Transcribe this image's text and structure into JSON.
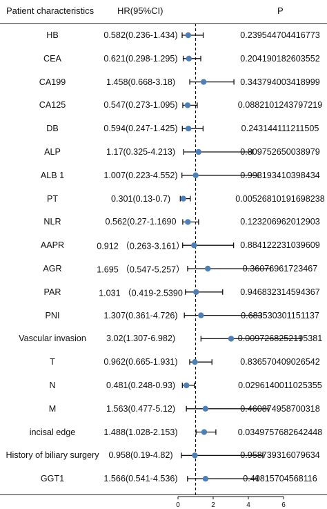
{
  "header": {
    "characteristics": "Patient characteristics",
    "hr": "HR(95%CI)",
    "p": "P"
  },
  "chart_data": {
    "type": "forest",
    "title": "",
    "xlabel": "",
    "ylabel": "",
    "reference_line": 1,
    "xlim": [
      0,
      6
    ],
    "x_ticks": [
      "0",
      "2",
      "4",
      "6"
    ],
    "marker_color": "#4f7fb5",
    "rows": [
      {
        "name": "HB",
        "hr_text": "0.582(0.236-1.434)",
        "p": "0.239544704416773",
        "hr": 0.582,
        "lo": 0.236,
        "hi": 1.434
      },
      {
        "name": "CEA",
        "hr_text": "0.621(0.298-1.295)",
        "p": "0.204190182603552",
        "hr": 0.621,
        "lo": 0.298,
        "hi": 1.295
      },
      {
        "name": "CA199",
        "hr_text": "1.458(0.668-3.18)",
        "p": "0.343794003418999",
        "hr": 1.458,
        "lo": 0.668,
        "hi": 3.18
      },
      {
        "name": "CA125",
        "hr_text": "0.547(0.273-1.095)",
        "p": "0.0882101243797219",
        "hr": 0.547,
        "lo": 0.273,
        "hi": 1.095
      },
      {
        "name": "DB",
        "hr_text": "0.594(0.247-1.425)",
        "p": "0.243144111211505",
        "hr": 0.594,
        "lo": 0.247,
        "hi": 1.425
      },
      {
        "name": "ALP",
        "hr_text": "1.17(0.325-4.213)",
        "p": "0.809752650038979",
        "hr": 1.17,
        "lo": 0.325,
        "hi": 4.213
      },
      {
        "name": "ALB 1",
        "hr_text": "1.007(0.223-4.552)",
        "p": "0.993193410398434",
        "hr": 1.007,
        "lo": 0.223,
        "hi": 4.552
      },
      {
        "name": "PT",
        "hr_text": "0.301(0.13-0.7)",
        "p": "0.00526810191698238",
        "hr": 0.301,
        "lo": 0.13,
        "hi": 0.7
      },
      {
        "name": "NLR",
        "hr_text": "0.562(0.27-1.1690",
        "p": "0.123206962012903",
        "hr": 0.562,
        "lo": 0.27,
        "hi": 1.169
      },
      {
        "name": "AAPR",
        "hr_text": "0.912 （0.263-3.161）",
        "p": "0.884122231039609",
        "hr": 0.912,
        "lo": 0.263,
        "hi": 3.161
      },
      {
        "name": "AGR",
        "hr_text": "1.695 （0.547-5.257）",
        "p": "0.36076961723467",
        "hr": 1.695,
        "lo": 0.547,
        "hi": 5.257
      },
      {
        "name": "PAR",
        "hr_text": "1.031 （0.419-2.5390",
        "p": "0.946832314594367",
        "hr": 1.031,
        "lo": 0.419,
        "hi": 2.539
      },
      {
        "name": "PNI",
        "hr_text": "1.307(0.361-4.726)",
        "p": "0.683530301151137",
        "hr": 1.307,
        "lo": 0.361,
        "hi": 4.726
      },
      {
        "name": "Vascular invasion",
        "hr_text": "3.02(1.307-6.982)",
        "p": "0.0097268252195381",
        "hr": 3.02,
        "lo": 1.307,
        "hi": 6.982
      },
      {
        "name": "T",
        "hr_text": "0.962(0.665-1.931)",
        "p": "0.836570409026542",
        "hr": 0.962,
        "lo": 0.665,
        "hi": 1.931
      },
      {
        "name": "N",
        "hr_text": "0.481(0.248-0.93)",
        "p": "0.0296140011025355",
        "hr": 0.481,
        "lo": 0.248,
        "hi": 0.93
      },
      {
        "name": "M",
        "hr_text": "1.563(0.477-5.12)",
        "p": "0.460874958700318",
        "hr": 1.563,
        "lo": 0.477,
        "hi": 5.12
      },
      {
        "name": "incisal edge",
        "hr_text": "1.488(1.028-2.153)",
        "p": "0.0349757682642448",
        "hr": 1.488,
        "lo": 1.028,
        "hi": 2.153
      },
      {
        "name": "History of biliary surgery",
        "hr_text": "0.958(0.19-4.82)",
        "p": "0.958739316079634",
        "hr": 0.958,
        "lo": 0.19,
        "hi": 4.82
      },
      {
        "name": "GGT1",
        "hr_text": "1.566(0.541-4.536)",
        "p": "0.40815704568116",
        "hr": 1.566,
        "lo": 0.541,
        "hi": 4.536
      }
    ]
  }
}
